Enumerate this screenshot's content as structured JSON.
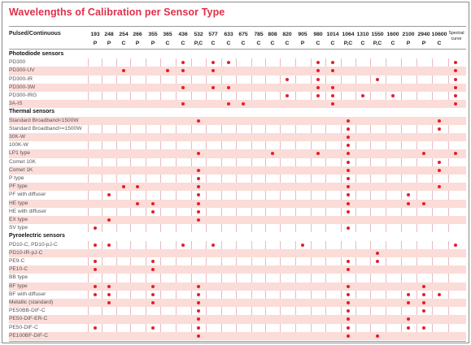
{
  "title": "Wavelengths of Calibration per Sensor Type",
  "header_label": "Pulsed/Continuous",
  "spectral_label": [
    "Spectral",
    "curve"
  ],
  "columns": [
    {
      "wl": "193",
      "type": "P"
    },
    {
      "wl": "248",
      "type": "P"
    },
    {
      "wl": "254",
      "type": "C"
    },
    {
      "wl": "266",
      "type": "P"
    },
    {
      "wl": "355",
      "type": "P"
    },
    {
      "wl": "365",
      "type": "C"
    },
    {
      "wl": "436",
      "type": "C"
    },
    {
      "wl": "532",
      "type": "P,C"
    },
    {
      "wl": "577",
      "type": "C"
    },
    {
      "wl": "633",
      "type": "C"
    },
    {
      "wl": "675",
      "type": "C"
    },
    {
      "wl": "785",
      "type": "C"
    },
    {
      "wl": "808",
      "type": "C"
    },
    {
      "wl": "820",
      "type": "C"
    },
    {
      "wl": "905",
      "type": "P"
    },
    {
      "wl": "980",
      "type": "C"
    },
    {
      "wl": "1014",
      "type": "C"
    },
    {
      "wl": "1064",
      "type": "P,C"
    },
    {
      "wl": "1310",
      "type": "C"
    },
    {
      "wl": "1550",
      "type": "P,C"
    },
    {
      "wl": "1600",
      "type": "C"
    },
    {
      "wl": "2100",
      "type": "P"
    },
    {
      "wl": "2940",
      "type": "P"
    },
    {
      "wl": "10600",
      "type": "C"
    },
    {
      "wl": "",
      "type": ""
    }
  ],
  "rows": [
    {
      "label": "Photodiode sensors",
      "section": true
    },
    {
      "label": "PD300",
      "dots": [
        6,
        8,
        9,
        15,
        16,
        24
      ]
    },
    {
      "label": "PD300-UV",
      "dots": [
        2,
        5,
        6,
        8,
        15,
        16,
        24
      ]
    },
    {
      "label": "PD300-IR",
      "dots": [
        13,
        15,
        19,
        24
      ]
    },
    {
      "label": "PD300-3W",
      "dots": [
        6,
        8,
        9,
        15,
        16,
        24
      ]
    },
    {
      "label": "PD300-IRG",
      "dots": [
        13,
        15,
        16,
        18,
        20,
        24
      ]
    },
    {
      "label": "3A-IS",
      "dots": [
        6,
        9,
        10,
        16,
        24
      ]
    },
    {
      "label": "Thermal sensors",
      "section": true
    },
    {
      "label": "Standard Broadband<1500W",
      "dots": [
        7,
        17,
        23
      ]
    },
    {
      "label": "Standard Broadband>=1500W",
      "dots": [
        17,
        23
      ]
    },
    {
      "label": "30K-W",
      "dots": [
        17
      ]
    },
    {
      "label": "100K-W",
      "dots": [
        17
      ]
    },
    {
      "label": "LP1 type",
      "dots": [
        7,
        12,
        15,
        17,
        22,
        24
      ]
    },
    {
      "label": "Comet 10K",
      "dots": [
        17,
        23
      ]
    },
    {
      "label": "Comet 1K",
      "dots": [
        7,
        17,
        23
      ]
    },
    {
      "label": "P type",
      "dots": [
        7,
        17
      ]
    },
    {
      "label": "PF type",
      "dots": [
        2,
        3,
        7,
        17,
        23
      ]
    },
    {
      "label": "PF with diffuser",
      "dots": [
        1,
        7,
        17,
        21
      ]
    },
    {
      "label": "HE type",
      "dots": [
        3,
        4,
        7,
        17,
        21,
        22
      ]
    },
    {
      "label": "HE with diffuser",
      "dots": [
        4,
        7,
        17
      ]
    },
    {
      "label": "EX type",
      "dots": [
        1,
        7
      ]
    },
    {
      "label": "SV type",
      "dots": [
        0,
        17
      ]
    },
    {
      "label": "Pyroelectric sensors",
      "section": true
    },
    {
      "label": "PD10-C, PD10-pJ-C",
      "dots": [
        0,
        1,
        6,
        8,
        14,
        24
      ]
    },
    {
      "label": "PD10-IR-pJ-C",
      "dots": [
        19
      ]
    },
    {
      "label": "PE9-C",
      "dots": [
        0,
        4,
        17,
        19
      ]
    },
    {
      "label": "PE10-C",
      "dots": [
        0,
        4,
        17
      ]
    },
    {
      "label": "BB type",
      "dots": []
    },
    {
      "label": "BF type",
      "dots": [
        0,
        1,
        4,
        7,
        17,
        22
      ]
    },
    {
      "label": "BF with diffuser",
      "dots": [
        0,
        1,
        4,
        7,
        17,
        21,
        22,
        23
      ]
    },
    {
      "label": "Metallic (standard)",
      "dots": [
        1,
        4,
        7,
        17,
        21,
        22
      ]
    },
    {
      "label": "PE50BB-DIF-C",
      "dots": [
        7,
        17,
        22
      ]
    },
    {
      "label": "PE50-DIF-ER-C",
      "dots": [
        7,
        17,
        21
      ]
    },
    {
      "label": "PE50-DIF-C",
      "dots": [
        0,
        4,
        7,
        17,
        21,
        22
      ]
    },
    {
      "label": "PE100BF-DIF-C",
      "dots": [
        7,
        17,
        19
      ]
    }
  ]
}
